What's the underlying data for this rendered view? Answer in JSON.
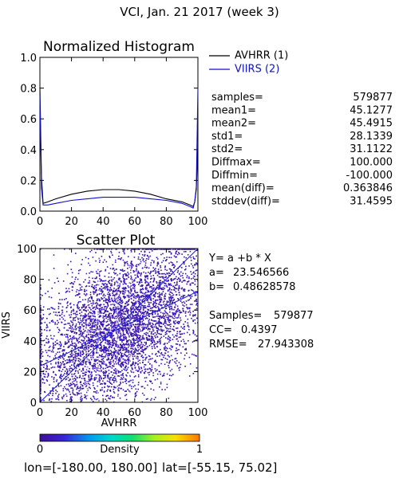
{
  "title": "VCI,  Jan. 21 2017 (week 3)",
  "footer": {
    "lon_label": "lon=",
    "lon_range": "[-180.00, 180.00]",
    "lat_label": "lat=",
    "lat_range": "[-55.15, 75.02]"
  },
  "colors": {
    "avhrr": "#000000",
    "viirs": "#1010c8",
    "fit_line": "#1a1ad0",
    "density_low": "#3c0f9b",
    "density_high": "#ff7700"
  },
  "histogram": {
    "subtitle": "Normalized Histogram",
    "legend": [
      {
        "label": "AVHRR (1)",
        "color": "#000000"
      },
      {
        "label": "VIIRS (2)",
        "color": "#1010c8"
      }
    ],
    "stats": [
      {
        "label": "samples=",
        "value": "579877"
      },
      {
        "label": "mean1=",
        "value": "45.1277"
      },
      {
        "label": "mean2=",
        "value": "45.4915"
      },
      {
        "label": "std1=",
        "value": "28.1339"
      },
      {
        "label": "std2=",
        "value": "31.1122"
      },
      {
        "label": "Diffmax=",
        "value": "100.000"
      },
      {
        "label": "Diffmin=",
        "value": "-100.000"
      },
      {
        "label": "mean(diff)=",
        "value": "0.363846"
      },
      {
        "label": "stddev(diff)=",
        "value": "31.4595"
      }
    ]
  },
  "scatter": {
    "subtitle": "Scatter Plot",
    "equation": "Y= a +b * X",
    "a_label": "a=",
    "a_value": "23.546566",
    "b_label": "b=",
    "b_value": "0.48628578",
    "samples_label": "Samples=",
    "samples_value": "579877",
    "cc_label": "CC=",
    "cc_value": "0.4397",
    "rmse_label": "RMSE=",
    "rmse_value": "27.943308"
  },
  "colorbar": {
    "min_label": "0",
    "max_label": "1",
    "title": "Density"
  },
  "chart_data": [
    {
      "type": "line",
      "title": "Normalized Histogram",
      "xlabel": "",
      "ylabel": "",
      "xlim": [
        0,
        100
      ],
      "ylim": [
        0,
        1.0
      ],
      "xticks": [
        "0",
        "20",
        "40",
        "60",
        "80",
        "100"
      ],
      "yticks": [
        "0.0",
        "0.2",
        "0.4",
        "0.6",
        "0.8",
        "1.0"
      ],
      "legend_position": "top-right",
      "series": [
        {
          "name": "AVHRR (1)",
          "color": "#000000",
          "x": [
            0,
            1,
            2,
            5,
            10,
            20,
            30,
            40,
            45,
            50,
            60,
            70,
            80,
            90,
            95,
            97,
            98,
            99,
            100
          ],
          "y": [
            0.8,
            0.22,
            0.05,
            0.06,
            0.08,
            0.11,
            0.13,
            0.14,
            0.14,
            0.14,
            0.13,
            0.11,
            0.08,
            0.06,
            0.04,
            0.03,
            0.06,
            0.14,
            0.44
          ]
        },
        {
          "name": "VIIRS (2)",
          "color": "#1010c8",
          "x": [
            0,
            1,
            2,
            5,
            10,
            20,
            30,
            40,
            50,
            60,
            70,
            80,
            90,
            95,
            97,
            98,
            99,
            100
          ],
          "y": [
            0.75,
            0.15,
            0.04,
            0.04,
            0.05,
            0.07,
            0.08,
            0.09,
            0.09,
            0.09,
            0.08,
            0.07,
            0.05,
            0.03,
            0.02,
            0.06,
            0.16,
            0.8
          ]
        }
      ]
    },
    {
      "type": "scatter",
      "title": "Scatter Plot",
      "xlabel": "AVHRR",
      "ylabel": "VIIRS",
      "xlim": [
        0,
        100
      ],
      "ylim": [
        0,
        100
      ],
      "xticks": [
        "0",
        "20",
        "40",
        "60",
        "80",
        "100"
      ],
      "yticks": [
        "0",
        "20",
        "40",
        "60",
        "80",
        "100"
      ],
      "fit_line": {
        "a": 23.546566,
        "b": 0.48628578
      },
      "identity_line": true,
      "samples": 579877,
      "colormap": "rainbow density (purple low to orange high)"
    }
  ]
}
